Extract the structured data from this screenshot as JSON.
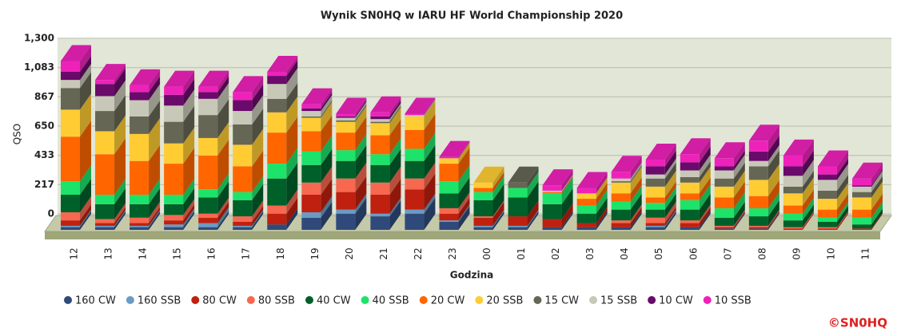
{
  "chart_data": {
    "type": "bar",
    "stacked": true,
    "title": "Wynik SN0HQ w IARU HF World Championship 2020",
    "x_label": "Godzina",
    "y_label": "QSO",
    "footer": "©SN0HQ",
    "categories": [
      "12",
      "13",
      "14",
      "15",
      "16",
      "17",
      "18",
      "19",
      "20",
      "21",
      "22",
      "23",
      "00",
      "01",
      "02",
      "03",
      "04",
      "05",
      "06",
      "07",
      "08",
      "09",
      "10",
      "11"
    ],
    "ylim": [
      0,
      1300
    ],
    "yticks": [
      0,
      217,
      433,
      650,
      867,
      {
        "value": 1083,
        "label": "1,083"
      },
      {
        "value": 1300,
        "label": "1,300"
      }
    ],
    "grid": true,
    "legend": "bottom",
    "series": [
      {
        "name": "160 CW",
        "color": "#2f4a7a",
        "values": [
          20,
          20,
          20,
          20,
          20,
          20,
          40,
          90,
          120,
          100,
          120,
          60,
          20,
          20,
          20,
          20,
          20,
          20,
          20,
          10,
          10,
          0,
          0,
          0
        ]
      },
      {
        "name": "160 SSB",
        "color": "#6a9bc3",
        "values": [
          10,
          10,
          10,
          20,
          30,
          10,
          0,
          40,
          30,
          20,
          30,
          10,
          10,
          10,
          0,
          0,
          0,
          10,
          0,
          0,
          0,
          0,
          0,
          0
        ]
      },
      {
        "name": "80 CW",
        "color": "#c0200f",
        "values": [
          40,
          20,
          20,
          30,
          40,
          30,
          80,
          130,
          130,
          140,
          150,
          50,
          60,
          70,
          60,
          30,
          30,
          20,
          30,
          10,
          10,
          10,
          10,
          10
        ]
      },
      {
        "name": "80 SSB",
        "color": "#f76850",
        "values": [
          60,
          30,
          40,
          40,
          30,
          40,
          60,
          90,
          100,
          90,
          80,
          40,
          10,
          0,
          0,
          0,
          20,
          40,
          20,
          10,
          10,
          10,
          10,
          0
        ]
      },
      {
        "name": "40 CW",
        "color": "#00602a",
        "values": [
          130,
          110,
          100,
          80,
          120,
          120,
          200,
          130,
          130,
          130,
          130,
          110,
          120,
          140,
          110,
          70,
          80,
          60,
          80,
          60,
          70,
          50,
          40,
          30
        ]
      },
      {
        "name": "40 SSB",
        "color": "#1ee36a",
        "values": [
          100,
          70,
          70,
          70,
          60,
          60,
          110,
          100,
          80,
          80,
          90,
          90,
          60,
          70,
          80,
          60,
          60,
          50,
          70,
          70,
          60,
          50,
          30,
          50
        ]
      },
      {
        "name": "20 CW",
        "color": "#ff6600",
        "values": [
          330,
          300,
          250,
          230,
          250,
          190,
          230,
          150,
          130,
          140,
          140,
          130,
          30,
          0,
          10,
          50,
          60,
          40,
          50,
          80,
          90,
          60,
          60,
          60
        ]
      },
      {
        "name": "20 SSB",
        "color": "#ffcc33",
        "values": [
          200,
          170,
          200,
          150,
          130,
          160,
          150,
          100,
          80,
          90,
          100,
          40,
          40,
          0,
          0,
          40,
          80,
          80,
          80,
          80,
          120,
          90,
          80,
          90
        ]
      },
      {
        "name": "15 CW",
        "color": "#666655",
        "values": [
          160,
          150,
          130,
          160,
          170,
          150,
          100,
          10,
          10,
          10,
          0,
          0,
          0,
          40,
          0,
          0,
          10,
          60,
          40,
          60,
          100,
          50,
          60,
          40
        ]
      },
      {
        "name": "15 SSB",
        "color": "#c8c8b8",
        "values": [
          60,
          110,
          120,
          120,
          120,
          100,
          110,
          40,
          20,
          20,
          10,
          0,
          0,
          0,
          10,
          0,
          20,
          30,
          50,
          60,
          40,
          80,
          80,
          40
        ]
      },
      {
        "name": "10 CW",
        "color": "#6a0a6a",
        "values": [
          60,
          90,
          60,
          80,
          50,
          80,
          60,
          20,
          10,
          20,
          0,
          0,
          0,
          0,
          0,
          0,
          0,
          60,
          60,
          30,
          70,
          70,
          40,
          10
        ]
      },
      {
        "name": "10 SSB",
        "color": "#ee22bb",
        "values": [
          80,
          30,
          50,
          60,
          40,
          60,
          30,
          30,
          20,
          30,
          10,
          10,
          0,
          0,
          40,
          40,
          50,
          50,
          60,
          60,
          80,
          80,
          60,
          50
        ]
      }
    ]
  }
}
